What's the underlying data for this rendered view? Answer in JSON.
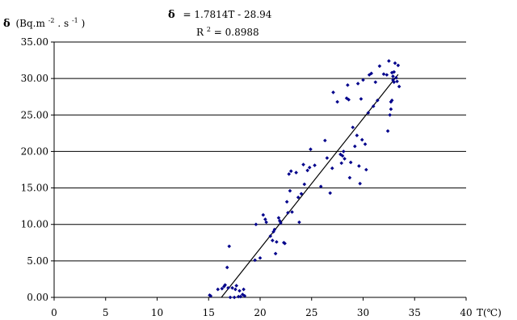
{
  "chart_data": {
    "type": "scatter",
    "ylabel_symbol": "δ",
    "ylabel_unit": "(Bq.m",
    "ylabel_exp1": "-2",
    "ylabel_mid": ". s",
    "ylabel_exp2": "-1",
    "ylabel_close": ")",
    "xlabel": "T(℃)",
    "equation_symbol": "δ",
    "equation_text": " = 1.7814T - 28.94",
    "r2_base": "R",
    "r2_exp": "2",
    "r2_value": " = 0.8988",
    "xlim": [
      0,
      40
    ],
    "ylim": [
      0,
      35
    ],
    "x_ticks": [
      0,
      5,
      10,
      15,
      20,
      25,
      30,
      35,
      40
    ],
    "x_tick_labels": [
      "0",
      "5",
      "10",
      "15",
      "20",
      "25",
      "30",
      "35",
      "40"
    ],
    "y_ticks": [
      0,
      5,
      10,
      15,
      20,
      25,
      30,
      35
    ],
    "y_tick_labels": [
      "0.00",
      "5.00",
      "10.00",
      "15.00",
      "20.00",
      "25.00",
      "30.00",
      "35.00"
    ],
    "grid": "horizontal",
    "colors": {
      "points": "#00008b",
      "trendline": "#000000",
      "grid": "#000000"
    },
    "trendline": {
      "slope": 1.7814,
      "intercept": -28.94,
      "x_start": 16.25,
      "x_end": 33.4
    },
    "points": [
      [
        15.1,
        0.3
      ],
      [
        15.2,
        0.2
      ],
      [
        15.9,
        1.1
      ],
      [
        16.3,
        1.2
      ],
      [
        16.5,
        1.5
      ],
      [
        16.6,
        1.7
      ],
      [
        16.8,
        4.1
      ],
      [
        16.9,
        1.3
      ],
      [
        17.0,
        7.0
      ],
      [
        17.1,
        0.0
      ],
      [
        17.3,
        1.3
      ],
      [
        17.5,
        0.0
      ],
      [
        17.6,
        1.1
      ],
      [
        17.7,
        1.6
      ],
      [
        17.9,
        0.1
      ],
      [
        18.0,
        0.9
      ],
      [
        18.1,
        0.1
      ],
      [
        18.3,
        0.4
      ],
      [
        18.4,
        1.1
      ],
      [
        18.5,
        0.2
      ],
      [
        19.5,
        5.1
      ],
      [
        19.6,
        10.0
      ],
      [
        20.0,
        5.4
      ],
      [
        20.3,
        11.3
      ],
      [
        20.5,
        10.7
      ],
      [
        20.6,
        10.3
      ],
      [
        21.0,
        8.4
      ],
      [
        21.2,
        7.8
      ],
      [
        21.3,
        9.0
      ],
      [
        21.4,
        9.3
      ],
      [
        21.5,
        6.0
      ],
      [
        21.6,
        7.6
      ],
      [
        21.8,
        10.9
      ],
      [
        21.9,
        10.5
      ],
      [
        22.0,
        10.2
      ],
      [
        22.3,
        7.5
      ],
      [
        22.4,
        7.4
      ],
      [
        22.6,
        13.1
      ],
      [
        22.7,
        11.6
      ],
      [
        22.8,
        16.9
      ],
      [
        22.9,
        14.6
      ],
      [
        23.0,
        17.3
      ],
      [
        23.1,
        11.7
      ],
      [
        23.5,
        17.1
      ],
      [
        23.7,
        13.7
      ],
      [
        23.8,
        10.3
      ],
      [
        24.0,
        14.2
      ],
      [
        24.2,
        18.2
      ],
      [
        24.3,
        15.5
      ],
      [
        24.6,
        17.4
      ],
      [
        24.8,
        17.8
      ],
      [
        24.9,
        20.3
      ],
      [
        25.3,
        18.1
      ],
      [
        25.9,
        15.2
      ],
      [
        26.3,
        21.5
      ],
      [
        26.5,
        19.1
      ],
      [
        26.8,
        14.3
      ],
      [
        27.0,
        17.7
      ],
      [
        27.1,
        28.1
      ],
      [
        27.5,
        26.8
      ],
      [
        27.8,
        19.6
      ],
      [
        27.9,
        18.4
      ],
      [
        28.0,
        19.4
      ],
      [
        28.1,
        20.0
      ],
      [
        28.2,
        19.0
      ],
      [
        28.4,
        27.3
      ],
      [
        28.5,
        29.1
      ],
      [
        28.6,
        27.1
      ],
      [
        28.7,
        16.4
      ],
      [
        28.8,
        18.5
      ],
      [
        29.0,
        23.3
      ],
      [
        29.2,
        20.7
      ],
      [
        29.4,
        22.2
      ],
      [
        29.5,
        29.3
      ],
      [
        29.6,
        18.0
      ],
      [
        29.7,
        15.6
      ],
      [
        29.8,
        27.2
      ],
      [
        29.9,
        21.6
      ],
      [
        30.0,
        29.8
      ],
      [
        30.2,
        21.0
      ],
      [
        30.3,
        17.5
      ],
      [
        30.5,
        25.3
      ],
      [
        30.6,
        30.5
      ],
      [
        30.8,
        30.7
      ],
      [
        31.0,
        26.2
      ],
      [
        31.2,
        29.5
      ],
      [
        31.4,
        27.0
      ],
      [
        31.6,
        31.7
      ],
      [
        32.0,
        30.6
      ],
      [
        32.3,
        30.5
      ],
      [
        32.4,
        22.8
      ],
      [
        32.5,
        32.4
      ],
      [
        32.6,
        25.0
      ],
      [
        32.7,
        26.8
      ],
      [
        32.8,
        30.8
      ],
      [
        32.9,
        30.3
      ],
      [
        33.0,
        29.5
      ],
      [
        33.1,
        32.1
      ],
      [
        33.2,
        30.1
      ],
      [
        33.3,
        29.6
      ],
      [
        33.4,
        31.8
      ],
      [
        33.5,
        28.9
      ],
      [
        32.9,
        29.8
      ],
      [
        33.0,
        30.9
      ],
      [
        32.8,
        27.0
      ],
      [
        32.7,
        25.8
      ]
    ]
  }
}
